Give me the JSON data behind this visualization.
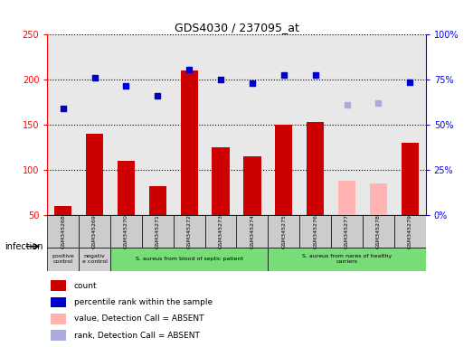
{
  "title": "GDS4030 / 237095_at",
  "samples": [
    "GSM345268",
    "GSM345269",
    "GSM345270",
    "GSM345271",
    "GSM345272",
    "GSM345273",
    "GSM345274",
    "GSM345275",
    "GSM345276",
    "GSM345277",
    "GSM345278",
    "GSM345279"
  ],
  "bar_values": [
    60,
    140,
    110,
    82,
    210,
    125,
    115,
    150,
    153,
    null,
    null,
    130
  ],
  "bar_absent_values": [
    null,
    null,
    null,
    null,
    null,
    null,
    null,
    null,
    null,
    88,
    85,
    null
  ],
  "scatter_values": [
    168,
    202,
    193,
    182,
    211,
    200,
    196,
    205,
    205,
    null,
    null,
    197
  ],
  "scatter_absent_values": [
    null,
    null,
    null,
    null,
    null,
    null,
    null,
    null,
    null,
    172,
    174,
    null
  ],
  "ylim_left": [
    50,
    250
  ],
  "ylim_right": [
    0,
    100
  ],
  "yticks_left": [
    50,
    100,
    150,
    200,
    250
  ],
  "yticks_right": [
    0,
    25,
    50,
    75,
    100
  ],
  "ytick_labels_right": [
    "0%",
    "25%",
    "50%",
    "75%",
    "100%"
  ],
  "bar_color": "#cc0000",
  "bar_absent_color": "#ffb3b3",
  "scatter_color": "#0000cc",
  "scatter_absent_color": "#aaaadd",
  "plot_bg_color": "#e8e8e8",
  "groups": [
    {
      "label": "positive\ncontrol",
      "start": 0,
      "end": 1,
      "color": "#d0d0d0"
    },
    {
      "label": "negativ\ne control",
      "start": 1,
      "end": 2,
      "color": "#d0d0d0"
    },
    {
      "label": "S. aureus from blood of septic patient",
      "start": 2,
      "end": 7,
      "color": "#77dd77"
    },
    {
      "label": "S. aureus from nares of healthy\ncarriers",
      "start": 7,
      "end": 12,
      "color": "#77dd77"
    }
  ],
  "infection_label": "infection",
  "legend_items": [
    {
      "label": "count",
      "color": "#cc0000"
    },
    {
      "label": "percentile rank within the sample",
      "color": "#0000cc"
    },
    {
      "label": "value, Detection Call = ABSENT",
      "color": "#ffb3b3"
    },
    {
      "label": "rank, Detection Call = ABSENT",
      "color": "#aaaadd"
    }
  ]
}
